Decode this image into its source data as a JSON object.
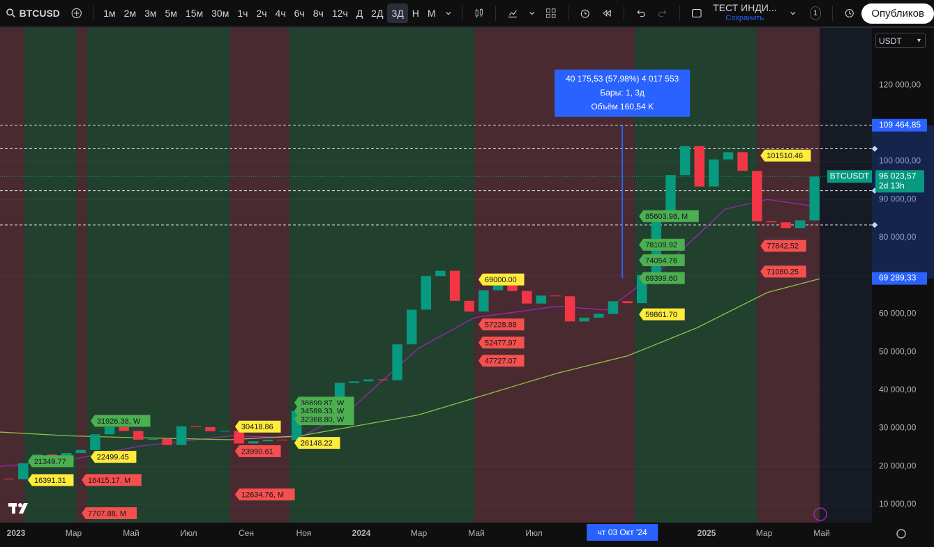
{
  "toolbar": {
    "symbol": "BTCUSD",
    "intervals": [
      "1м",
      "2м",
      "3м",
      "5м",
      "15м",
      "30м",
      "1ч",
      "2ч",
      "4ч",
      "6ч",
      "8ч",
      "12ч",
      "Д",
      "2Д",
      "3Д",
      "Н",
      "М"
    ],
    "active_interval": 14,
    "indicator": "ТЕСТ ИНДИ...",
    "save": "Сохранить",
    "badge": "1",
    "publish": "Опубликов"
  },
  "currency": "USDT",
  "chart_data": {
    "type": "candlestick",
    "x": [
      -0.25,
      0.25,
      0.75,
      1.25,
      1.75,
      2.25,
      2.75,
      3.25,
      3.75,
      4.25,
      4.75,
      5.25,
      5.75,
      6.25,
      6.75,
      7.25,
      7.75,
      8.25,
      8.75,
      9.25,
      9.75,
      10.25,
      10.75,
      11.25,
      11.75,
      12.25,
      12.75,
      13.25,
      13.75,
      14.25,
      14.75,
      15.25,
      15.75,
      16.25,
      16.75,
      17.25,
      17.75,
      18.25,
      18.75,
      19.25,
      19.75,
      20.25,
      20.75,
      21.25,
      21.75,
      22.25,
      22.75,
      23.25,
      23.75,
      24.25,
      24.75,
      25.25,
      25.75,
      26.25,
      26.75,
      27.25,
      27.75
    ],
    "open": [
      16800,
      16600,
      20800,
      23100,
      21800,
      23500,
      24300,
      28400,
      30300,
      29300,
      27000,
      27200,
      25600,
      30500,
      30300,
      29200,
      29300,
      26000,
      26600,
      27000,
      26900,
      34500,
      35500,
      37700,
      41900,
      42300,
      42800,
      42600,
      52000,
      61100,
      69900,
      71300,
      63400,
      60600,
      66200,
      67500,
      66000,
      62700,
      64800,
      64600,
      58000,
      59000,
      60000,
      63300,
      62800,
      70200,
      87000,
      96400,
      104000,
      93400,
      100500,
      102400,
      97500,
      84300,
      84000,
      82500,
      84500
    ],
    "close": [
      16600,
      20800,
      23100,
      21800,
      23500,
      24300,
      28400,
      30300,
      29300,
      27000,
      27200,
      25600,
      30500,
      30300,
      29200,
      29300,
      26000,
      26600,
      27000,
      26900,
      34500,
      35500,
      37700,
      41900,
      42300,
      42800,
      42600,
      52000,
      61100,
      69900,
      71300,
      63400,
      60600,
      66200,
      67500,
      66000,
      62700,
      64800,
      64600,
      58000,
      59000,
      60000,
      63300,
      62800,
      70200,
      87000,
      96400,
      104000,
      93400,
      100500,
      102400,
      97500,
      84300,
      84000,
      82500,
      84500,
      96000
    ],
    "up_color": "#089981",
    "down_color": "#f23645",
    "moving_averages": [
      {
        "color": "#9c27b0",
        "x": [
          -0.56,
          1.87,
          4.29,
          7.44,
          9.87,
          11.56,
          13.99,
          15.93,
          18.84,
          20.53,
          22.47,
          24.65,
          26.11,
          27.93
        ],
        "values": [
          20000,
          21700,
          25300,
          28000,
          27500,
          34500,
          51000,
          59000,
          62000,
          61000,
          72000,
          87500,
          90000,
          88000
        ]
      },
      {
        "color": "#8bc34a",
        "x": [
          -0.56,
          1.87,
          4.29,
          7.44,
          9.87,
          13.99,
          16.41,
          18.84,
          21.26,
          23.68,
          26.11,
          27.93
        ],
        "values": [
          29000,
          28000,
          27500,
          27000,
          28000,
          33500,
          39000,
          44500,
          49000,
          56400,
          65600,
          69200
        ]
      }
    ],
    "zones": [
      {
        "x": [
          -0.56,
          0.29
        ],
        "color": "#4a2a31"
      },
      {
        "x": [
          0.29,
          2.11
        ],
        "color": "#22402e"
      },
      {
        "x": [
          2.11,
          2.47
        ],
        "color": "#4a2a31"
      },
      {
        "x": [
          2.47,
          7.44
        ],
        "color": "#22402e"
      },
      {
        "x": [
          7.44,
          9.5
        ],
        "color": "#4a2a31"
      },
      {
        "x": [
          9.5,
          15.93
        ],
        "color": "#22402e"
      },
      {
        "x": [
          15.93,
          21.5
        ],
        "color": "#4a2a31"
      },
      {
        "x": [
          21.5,
          25.75
        ],
        "color": "#22402e"
      },
      {
        "x": [
          25.75,
          27.93
        ],
        "color": "#4a2a31"
      },
      {
        "x": [
          27.93,
          29.75
        ],
        "color": "#151a24"
      }
    ],
    "levels": [
      109464.85,
      103300,
      92300,
      83300
    ],
    "price_labels": [
      {
        "value": 109464.85,
        "label": "109 464,85",
        "color": "#2962ff"
      },
      {
        "value": 96023.57,
        "label": "96 023,57",
        "extra": "2d 13h",
        "symbol": "BTCUSDT",
        "color": "#089981"
      },
      {
        "value": 69289.33,
        "label": "69 289,33",
        "color": "#2962ff"
      }
    ],
    "tags": [
      {
        "x": 0.41,
        "value": 21349.77,
        "label": "21349.77",
        "color": "#4caf50"
      },
      {
        "x": 0.41,
        "value": 16391.31,
        "label": "16391.31",
        "color": "#ffeb3b"
      },
      {
        "x": 2.59,
        "value": 31926.38,
        "label": "31926.38, W",
        "color": "#4caf50"
      },
      {
        "x": 2.59,
        "value": 22499.45,
        "label": "22499.45",
        "color": "#ffeb3b"
      },
      {
        "x": 2.28,
        "value": 16415.17,
        "label": "16415.17, M",
        "color": "#f5504e"
      },
      {
        "x": 2.28,
        "value": 7707.88,
        "label": "7707.88, M",
        "color": "#f5504e"
      },
      {
        "x": 7.61,
        "value": 30418.86,
        "label": "30418.86",
        "color": "#ffeb3b"
      },
      {
        "x": 7.61,
        "value": 23990.61,
        "label": "23990.61",
        "color": "#f5504e"
      },
      {
        "x": 7.61,
        "value": 12634.76,
        "label": "12634.76, M",
        "color": "#f5504e"
      },
      {
        "x": 9.67,
        "value": 26148.22,
        "label": "26148.22",
        "color": "#ffeb3b"
      },
      {
        "x": 9.67,
        "value": 36699.87,
        "label": "36699.87, W",
        "color": "#4caf50"
      },
      {
        "x": 9.67,
        "value": 34589.33,
        "label": "34589.33, W",
        "color": "#4caf50"
      },
      {
        "x": 9.67,
        "value": 32368.8,
        "label": "32368.80, W",
        "color": "#4caf50"
      },
      {
        "x": 16.07,
        "value": 69000,
        "label": "69000.00",
        "color": "#ffeb3b"
      },
      {
        "x": 16.07,
        "value": 57228.88,
        "label": "57228.88",
        "color": "#f5504e"
      },
      {
        "x": 16.07,
        "value": 52477.97,
        "label": "52477.97",
        "color": "#f5504e"
      },
      {
        "x": 16.07,
        "value": 47727.07,
        "label": "47727.07",
        "color": "#f5504e"
      },
      {
        "x": 21.65,
        "value": 85603.98,
        "label": "85603.98, M",
        "color": "#4caf50"
      },
      {
        "x": 21.65,
        "value": 78109.92,
        "label": "78109.92",
        "color": "#4caf50"
      },
      {
        "x": 21.65,
        "value": 74054.76,
        "label": "74054.76",
        "color": "#4caf50"
      },
      {
        "x": 21.65,
        "value": 69399.6,
        "label": "69399.60",
        "color": "#4caf50"
      },
      {
        "x": 21.65,
        "value": 59861.7,
        "label": "59861.70",
        "color": "#ffeb3b"
      },
      {
        "x": 25.87,
        "value": 101510.46,
        "label": "101510.46",
        "color": "#ffeb3b"
      },
      {
        "x": 25.87,
        "value": 77842.52,
        "label": "77842.52",
        "color": "#f5504e"
      },
      {
        "x": 25.87,
        "value": 71080.25,
        "label": "71080.25",
        "color": "#f5504e"
      }
    ],
    "measure": {
      "x": 21.07,
      "from": 69289.33,
      "to": 109464.85,
      "lines": [
        "40 175,53 (57,98%) 4 017 553",
        "Бары: 1, 3д",
        "Объём 160,54 K"
      ]
    },
    "crosshair": {
      "x": 21.07,
      "label": "чт 03 Окт '24"
    },
    "xlim": [
      -0.5576,
      29.745
    ],
    "xticks": [
      {
        "value": 0,
        "label": "2023"
      },
      {
        "value": 2,
        "label": "Мар"
      },
      {
        "value": 4,
        "label": "Май"
      },
      {
        "value": 6,
        "label": "Июл"
      },
      {
        "value": 8,
        "label": "Сен"
      },
      {
        "value": 10,
        "label": "Ноя"
      },
      {
        "value": 12,
        "label": "2024"
      },
      {
        "value": 14,
        "label": "Мар"
      },
      {
        "value": 16,
        "label": "Май"
      },
      {
        "value": 18,
        "label": "Июл"
      },
      {
        "value": 24,
        "label": "2025"
      },
      {
        "value": 26,
        "label": "Мар"
      },
      {
        "value": 28,
        "label": "Май"
      }
    ],
    "ylim": [
      5250,
      135000
    ],
    "yticks": [
      {
        "value": 10000,
        "label": "10 000,00"
      },
      {
        "value": 20000,
        "label": "20 000,00"
      },
      {
        "value": 30000,
        "label": "30 000,00"
      },
      {
        "value": 40000,
        "label": "40 000,00"
      },
      {
        "value": 50000,
        "label": "50 000,00"
      },
      {
        "value": 60000,
        "label": "60 000,00"
      },
      {
        "value": 70000,
        "label": "70 000,00"
      },
      {
        "value": 80000,
        "label": "80 000,00"
      },
      {
        "value": 90000,
        "label": "90 000,00"
      },
      {
        "value": 100000,
        "label": "100 000,00"
      },
      {
        "value": 120000,
        "label": "120 000,00"
      }
    ],
    "grid": true
  }
}
